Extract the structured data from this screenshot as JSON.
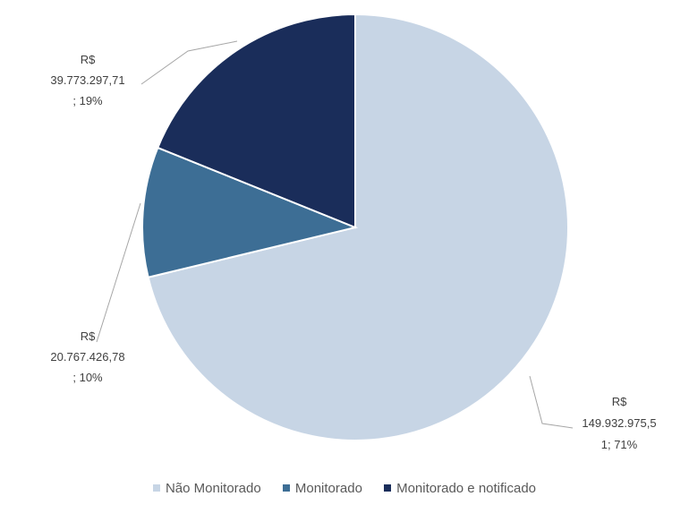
{
  "chart_data": {
    "type": "pie",
    "title": "",
    "slices": [
      {
        "name": "Não Monitorado",
        "value": 149932975.51,
        "percent": 71,
        "color": "#c7d5e5",
        "label_lines": [
          "R$",
          "149.932.975,5",
          "1; 71%"
        ]
      },
      {
        "name": "Monitorado",
        "value": 20767426.78,
        "percent": 10,
        "color": "#3d6e95",
        "label_lines": [
          "R$",
          "20.767.426,78",
          "; 10%"
        ]
      },
      {
        "name": "Monitorado e notificado",
        "value": 39773297.71,
        "percent": 19,
        "color": "#1a2d5a",
        "label_lines": [
          "R$",
          "39.773.297,71",
          "; 19%"
        ]
      }
    ],
    "legend": {
      "position": "bottom",
      "entries": [
        "Não Monitorado",
        "Monitorado",
        "Monitorado e notificado"
      ]
    }
  }
}
